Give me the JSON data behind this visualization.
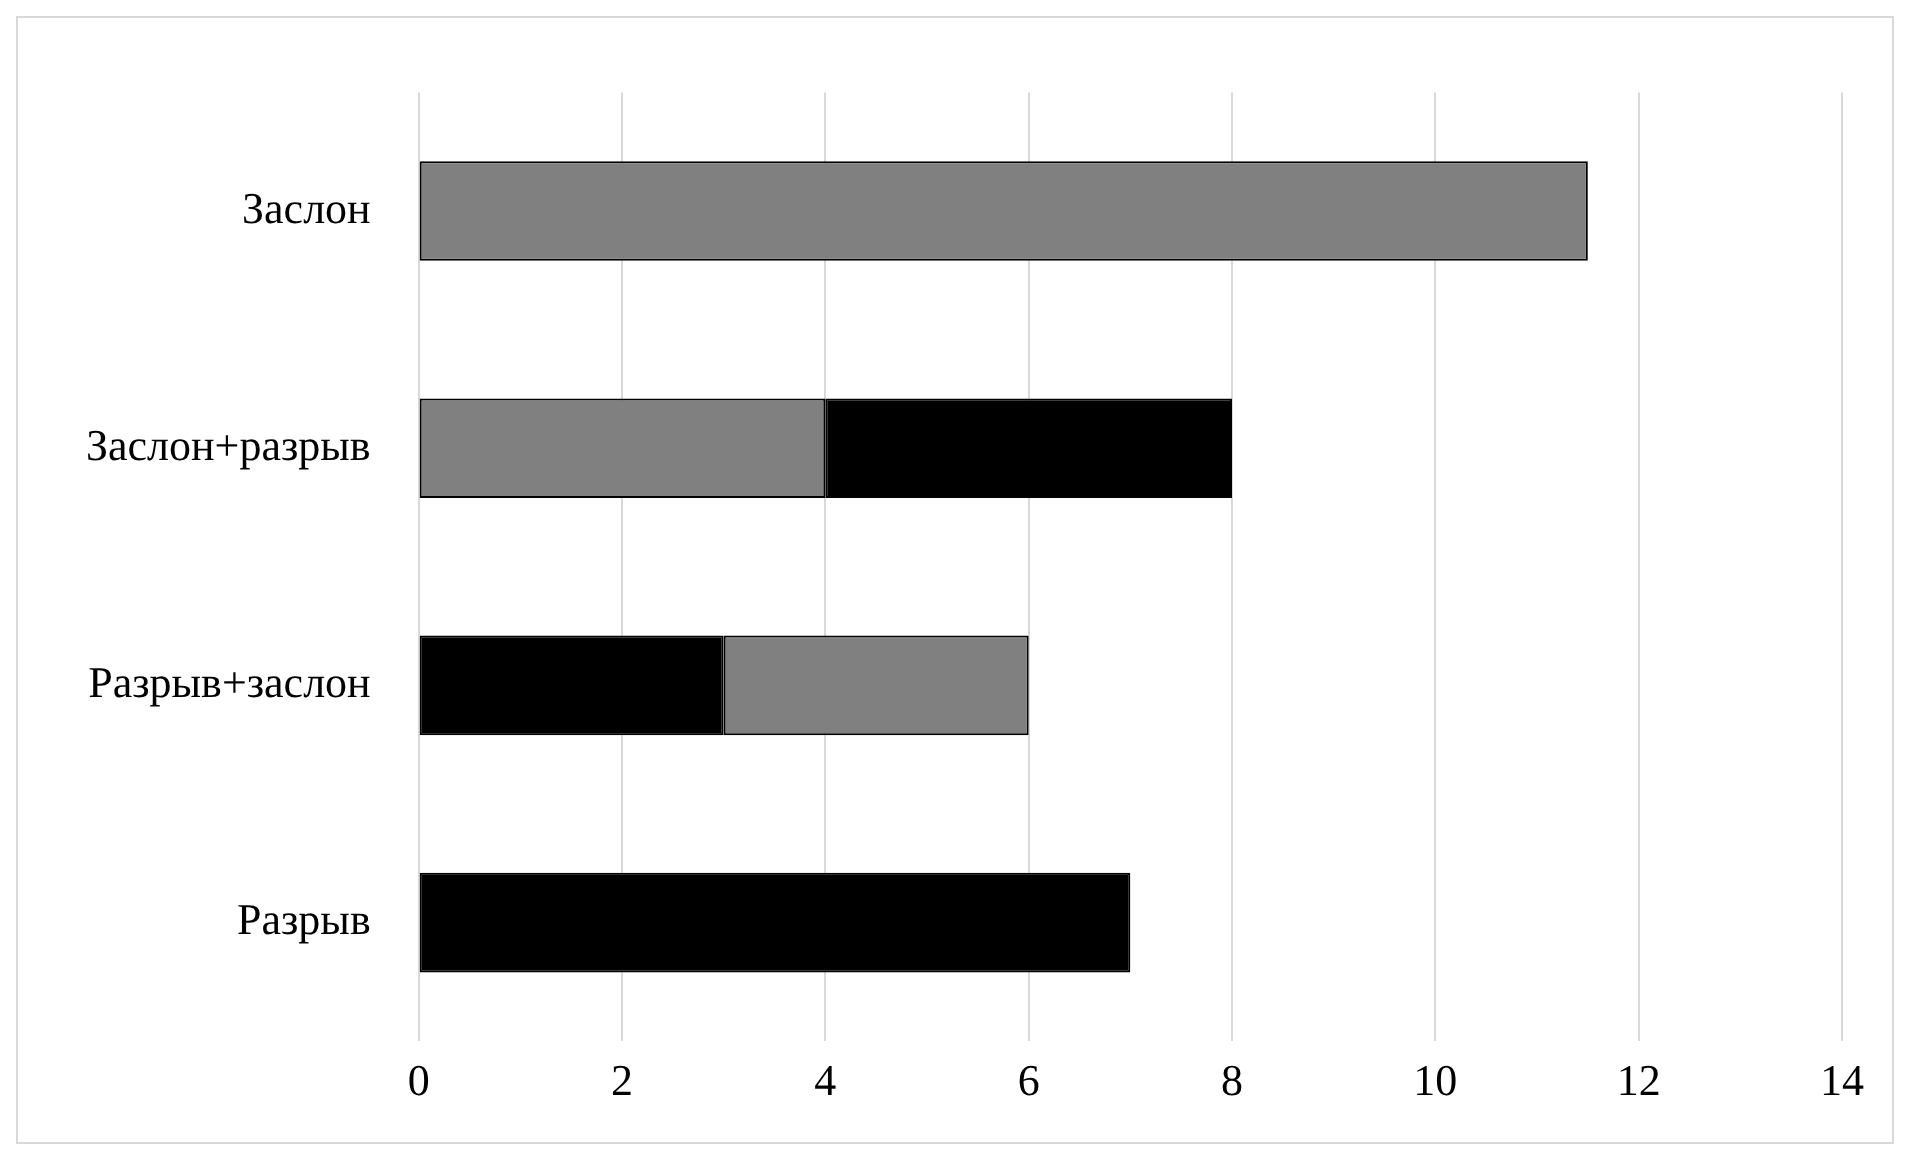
{
  "chart_data": {
    "type": "bar",
    "orientation": "horizontal",
    "stacked": true,
    "categories": [
      "Заслон",
      "Заслон+разрыв",
      "Разрыв+заслон",
      "Разрыв"
    ],
    "series": [
      {
        "colors": [
          "#808080",
          "#808080",
          "#000000",
          "#000000"
        ],
        "values": [
          11.5,
          4,
          3,
          7
        ]
      },
      {
        "colors": [
          "#808080",
          "#000000",
          "#808080",
          "#000000"
        ],
        "values": [
          null,
          4,
          3,
          null
        ]
      }
    ],
    "xlim": [
      0,
      14
    ],
    "xticks": [
      0,
      2,
      4,
      6,
      8,
      10,
      12,
      14
    ],
    "grid": "x",
    "legend": false
  }
}
